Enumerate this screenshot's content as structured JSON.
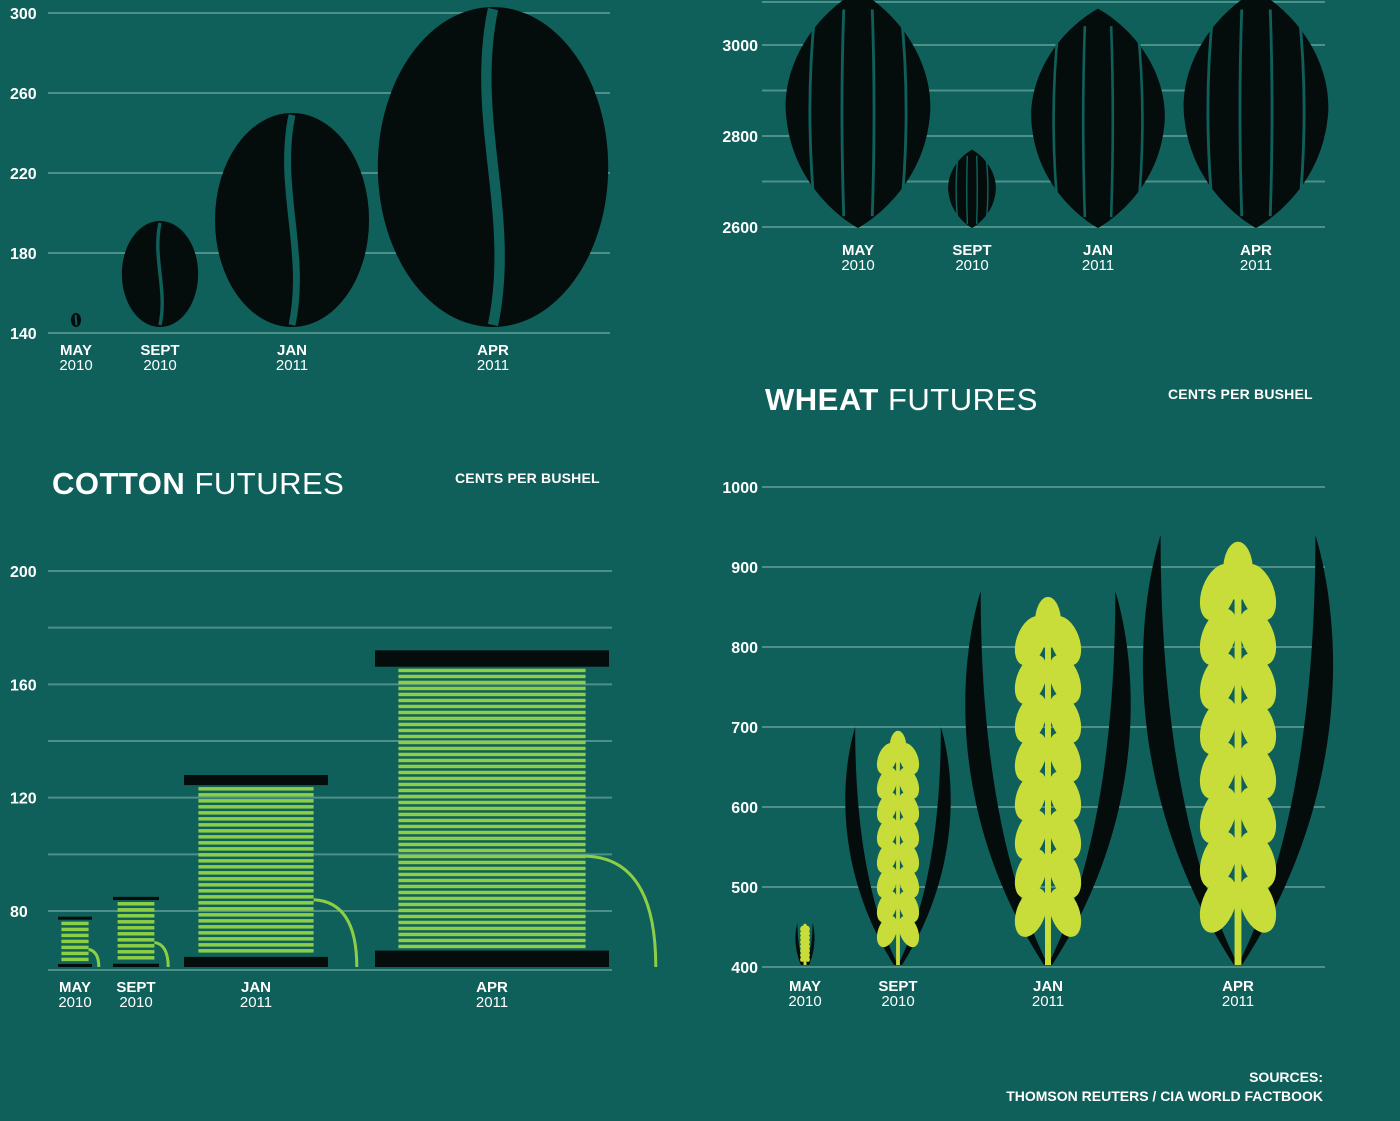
{
  "chart_data": [
    {
      "id": "coffee",
      "type": "bar",
      "title_bold": "",
      "title_light": "",
      "unit": "",
      "categories": [
        {
          "month": "MAY",
          "year": "2010"
        },
        {
          "month": "SEPT",
          "year": "2010"
        },
        {
          "month": "JAN",
          "year": "2011"
        },
        {
          "month": "APR",
          "year": "2011"
        }
      ],
      "values": [
        150,
        196,
        250,
        303
      ],
      "yticks": [
        140,
        180,
        220,
        260,
        300
      ],
      "ylim": [
        140,
        300
      ],
      "grid": true,
      "colors": {
        "mark": "#050d0c",
        "grid": "#4f8f89",
        "background": "#0f5f5a"
      },
      "icon": "coffee-bean-icon"
    },
    {
      "id": "cocoa",
      "type": "bar",
      "title_bold": "",
      "title_light": "",
      "unit": "",
      "categories": [
        {
          "month": "MAY",
          "year": "2010"
        },
        {
          "month": "SEPT",
          "year": "2010"
        },
        {
          "month": "JAN",
          "year": "2011"
        },
        {
          "month": "APR",
          "year": "2011"
        }
      ],
      "values": [
        3120,
        2770,
        3080,
        3120
      ],
      "yticks": [
        2600,
        2800,
        3000
      ],
      "ylim": [
        2600,
        3100
      ],
      "grid": true,
      "colors": {
        "mark": "#050d0c",
        "grid": "#4f8f89",
        "background": "#0f5f5a"
      },
      "icon": "cocoa-pod-icon"
    },
    {
      "id": "cotton",
      "type": "bar",
      "title_bold": "COTTON",
      "title_light": "FUTURES",
      "unit": "CENTS PER BUSHEL",
      "categories": [
        {
          "month": "MAY",
          "year": "2010"
        },
        {
          "month": "SEPT",
          "year": "2010"
        },
        {
          "month": "JAN",
          "year": "2011"
        },
        {
          "month": "APR",
          "year": "2011"
        }
      ],
      "values": [
        78,
        85,
        128,
        172
      ],
      "yticks": [
        80,
        120,
        160,
        200
      ],
      "ylim": [
        60,
        200
      ],
      "grid": true,
      "colors": {
        "mark": "#050d0c",
        "thread": "#8ccf46",
        "grid": "#4f8f89",
        "background": "#0f5f5a"
      },
      "icon": "thread-spool-icon"
    },
    {
      "id": "wheat",
      "type": "bar",
      "title_bold": "WHEAT",
      "title_light": "FUTURES",
      "unit": "CENTS PER BUSHEL",
      "categories": [
        {
          "month": "MAY",
          "year": "2010"
        },
        {
          "month": "SEPT",
          "year": "2010"
        },
        {
          "month": "JAN",
          "year": "2011"
        },
        {
          "month": "APR",
          "year": "2011"
        }
      ],
      "values": [
        455,
        700,
        870,
        940
      ],
      "yticks": [
        400,
        500,
        600,
        700,
        800,
        900,
        1000
      ],
      "ylim": [
        400,
        1000
      ],
      "grid": true,
      "colors": {
        "mark": "#050d0c",
        "grain": "#c8dd3a",
        "grid": "#4f8f89",
        "background": "#0f5f5a"
      },
      "icon": "wheat-stalk-icon"
    }
  ],
  "sources": {
    "label": "SOURCES:",
    "text": "THOMSON REUTERS / CIA WORLD FACTBOOK"
  }
}
